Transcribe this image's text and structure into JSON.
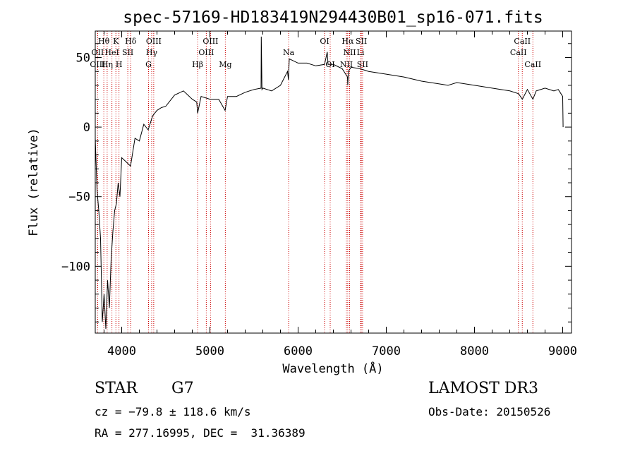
{
  "chart_data": {
    "type": "line",
    "title": "spec-57169-HD183419N294430B01_sp16-071.fits",
    "xlabel": "Wavelength (Å)",
    "ylabel": "Flux (relative)",
    "xlim": [
      3700,
      9100
    ],
    "ylim": [
      -148,
      69
    ],
    "xticks": [
      4000,
      5000,
      6000,
      7000,
      8000,
      9000
    ],
    "yticks": [
      -100,
      -50,
      0,
      50
    ],
    "series": [
      {
        "x": [
          3700,
          3720,
          3740,
          3760,
          3780,
          3800,
          3820,
          3840,
          3860,
          3880,
          3900,
          3920,
          3940,
          3960,
          3980,
          4000,
          4050,
          4100,
          4150,
          4200,
          4250,
          4300,
          4350,
          4400,
          4450,
          4500,
          4600,
          4700,
          4800,
          4850,
          4861,
          4900,
          5000,
          5100,
          5172,
          5200,
          5300,
          5400,
          5500,
          5580,
          5582,
          5590,
          5600,
          5700,
          5800,
          5880,
          5890,
          5900,
          6000,
          6100,
          6200,
          6300,
          6330,
          6340,
          6400,
          6500,
          6560,
          6563,
          6570,
          6600,
          6700,
          6800,
          7000,
          7200,
          7400,
          7600,
          7700,
          7800,
          8000,
          8200,
          8400,
          8500,
          8542,
          8600,
          8662,
          8700,
          8800,
          8900,
          8950,
          9000,
          9005
        ],
        "values": [
          -8,
          -45,
          -60,
          -80,
          -140,
          -120,
          -145,
          -110,
          -130,
          -95,
          -75,
          -60,
          -55,
          -40,
          -50,
          -22,
          -25,
          -28,
          -8,
          -10,
          2,
          -2,
          8,
          12,
          14,
          15,
          23,
          26,
          20,
          18,
          10,
          22,
          20,
          20,
          12,
          22,
          22,
          25,
          27,
          28,
          65,
          27,
          28,
          26,
          30,
          40,
          34,
          49,
          46,
          46,
          44,
          45,
          54,
          45,
          45,
          42,
          36,
          30,
          40,
          43,
          42,
          40,
          38,
          36,
          33,
          31,
          30,
          32,
          30,
          28,
          26,
          24,
          20,
          27,
          20,
          26,
          28,
          26,
          27,
          22,
          0
        ]
      }
    ],
    "line_markers": [
      {
        "name": "Hθ",
        "x": 3797,
        "row": 1
      },
      {
        "name": "OII",
        "x": 3727,
        "row": 2
      },
      {
        "name": "OIII",
        "x": 3727,
        "row": 3
      },
      {
        "name": "K",
        "x": 3934,
        "row": 1
      },
      {
        "name": "Hη",
        "x": 3835,
        "row": 3
      },
      {
        "name": "HeI",
        "x": 3889,
        "row": 2
      },
      {
        "name": "SII",
        "x": 4069,
        "row": 2
      },
      {
        "name": "H",
        "x": 3969,
        "row": 3
      },
      {
        "name": "Hδ",
        "x": 4102,
        "row": 1
      },
      {
        "name": "OIII",
        "x": 4363,
        "row": 1
      },
      {
        "name": "Hγ",
        "x": 4340,
        "row": 2
      },
      {
        "name": "G",
        "x": 4304,
        "row": 3
      },
      {
        "name": "OIII",
        "x": 5007,
        "row": 1
      },
      {
        "name": "OIII",
        "x": 4959,
        "row": 2
      },
      {
        "name": "Hβ",
        "x": 4861,
        "row": 3
      },
      {
        "name": "Mg",
        "x": 5175,
        "row": 3
      },
      {
        "name": "Na",
        "x": 5893,
        "row": 2
      },
      {
        "name": "OI",
        "x": 6300,
        "row": 1
      },
      {
        "name": "OI",
        "x": 6364,
        "row": 3
      },
      {
        "name": "Hα",
        "x": 6563,
        "row": 1
      },
      {
        "name": "SII",
        "x": 6717,
        "row": 1
      },
      {
        "name": "NII",
        "x": 6584,
        "row": 2
      },
      {
        "name": "Li",
        "x": 6708,
        "row": 2
      },
      {
        "name": "NII",
        "x": 6548,
        "row": 3
      },
      {
        "name": "SII",
        "x": 6731,
        "row": 3
      },
      {
        "name": "CaII",
        "x": 8542,
        "row": 1
      },
      {
        "name": "CaII",
        "x": 8498,
        "row": 2
      },
      {
        "name": "CaII",
        "x": 8662,
        "row": 3
      }
    ]
  },
  "footer": {
    "object_type": "STAR",
    "subclass": "G7",
    "survey": "LAMOST DR3",
    "cz": "cz = −79.8 ± 118.6 km/s",
    "obs_date": "Obs-Date: 20150526",
    "coords": "RA = 277.16995, DEC =  31.36389"
  },
  "colors": {
    "spectrum": "#000000",
    "marker_line": "#cc0000",
    "axes": "#000000"
  }
}
